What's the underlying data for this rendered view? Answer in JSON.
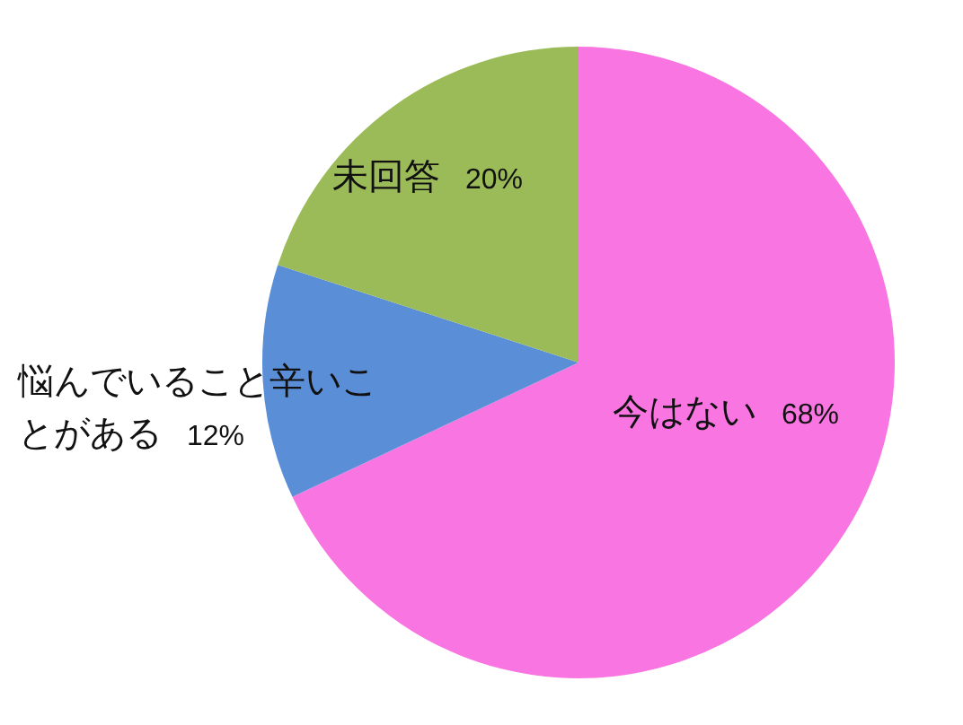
{
  "chart_data": {
    "type": "pie",
    "categories": [
      "今はない",
      "悩んでいること辛いことがある",
      "未回答"
    ],
    "values": [
      68,
      12,
      20
    ],
    "value_labels": [
      "68%",
      "12%",
      "20%"
    ],
    "colors": [
      "#f875e2",
      "#5a8ed6",
      "#9bbb59"
    ]
  }
}
